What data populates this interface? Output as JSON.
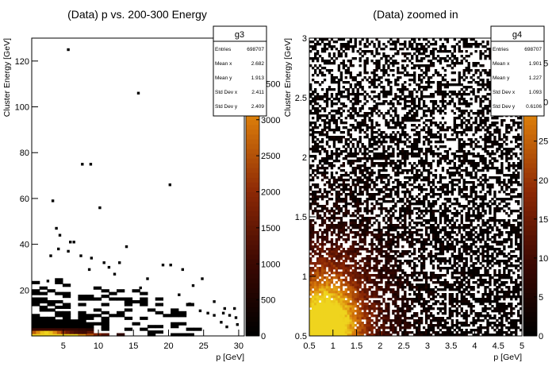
{
  "chart_data": [
    {
      "type": "heatmap",
      "title": "(Data) p vs. 200-300 Energy",
      "xlabel": "p [GeV]",
      "ylabel": "Cluster Energy [GeV]",
      "xlim": [
        0.5,
        30.8
      ],
      "ylim": [
        0,
        130
      ],
      "x_ticks": [
        "5",
        "10",
        "15",
        "20",
        "25",
        "30"
      ],
      "y_ticks": [
        "20",
        "40",
        "60",
        "80",
        "100",
        "120"
      ],
      "colorbar_ticks": [
        "0",
        "500",
        "1000",
        "1500",
        "2000",
        "2500",
        "3000",
        "3500"
      ],
      "colorbar_range": [
        0,
        4000
      ],
      "stats": {
        "name": "g3",
        "rows": [
          {
            "label": "Entries",
            "value": "698707"
          },
          {
            "label": "Mean x",
            "value": "2.682"
          },
          {
            "label": "Mean y",
            "value": "1.913"
          },
          {
            "label": "Std Dev x",
            "value": "2.411"
          },
          {
            "label": "Std Dev y",
            "value": "2.409"
          }
        ]
      },
      "outlier_points": [
        [
          5.7,
          125
        ],
        [
          15.7,
          106
        ],
        [
          7.7,
          75
        ],
        [
          8.9,
          75
        ],
        [
          20.2,
          66
        ],
        [
          3.5,
          59
        ],
        [
          10.2,
          56
        ],
        [
          4,
          47
        ],
        [
          4.5,
          44
        ],
        [
          6,
          41
        ],
        [
          6.5,
          41
        ],
        [
          14,
          39
        ],
        [
          4.3,
          38
        ],
        [
          5.7,
          37
        ],
        [
          3.2,
          35
        ],
        [
          7.5,
          35
        ],
        [
          9,
          34
        ],
        [
          10.8,
          32
        ],
        [
          13,
          32
        ],
        [
          19.2,
          31
        ],
        [
          20.3,
          31
        ],
        [
          11.5,
          30
        ],
        [
          22,
          29
        ],
        [
          8.7,
          29
        ],
        [
          12.3,
          27
        ],
        [
          24.8,
          25
        ],
        [
          2.8,
          24
        ],
        [
          17,
          25
        ],
        [
          23.5,
          22
        ],
        [
          16,
          21
        ],
        [
          21.5,
          18
        ],
        [
          26.5,
          15
        ],
        [
          23,
          14
        ],
        [
          28,
          12
        ],
        [
          24.5,
          11
        ],
        [
          25.6,
          10
        ],
        [
          26.5,
          9
        ],
        [
          27.8,
          10
        ],
        [
          28.7,
          9
        ],
        [
          29.6,
          8
        ],
        [
          29.4,
          12
        ],
        [
          27.5,
          6
        ],
        [
          29.8,
          5
        ],
        [
          28.3,
          4
        ]
      ],
      "dense_region": "x 0.5-24, y 0-25, peak near p 2-5 GeV, E < 3 GeV"
    },
    {
      "type": "heatmap",
      "title": "(Data) zoomed in",
      "xlabel": "p [GeV]",
      "ylabel": "Cluster Energy [GeV]",
      "xlim": [
        0.5,
        5
      ],
      "ylim": [
        0.5,
        3
      ],
      "x_ticks": [
        "0.5",
        "1",
        "1.5",
        "2",
        "2.5",
        "3",
        "3.5",
        "4",
        "4.5",
        "5"
      ],
      "y_ticks": [
        "0.5",
        "1",
        "1.5",
        "2",
        "2.5",
        "3"
      ],
      "colorbar_ticks": [
        "0",
        "5",
        "10",
        "15",
        "20",
        "25",
        "30",
        "35"
      ],
      "colorbar_range": [
        0,
        37
      ],
      "stats": {
        "name": "g4",
        "rows": [
          {
            "label": "Entries",
            "value": "698707"
          },
          {
            "label": "Mean x",
            "value": "1.901"
          },
          {
            "label": "Mean y",
            "value": "1.227"
          },
          {
            "label": "Std Dev x",
            "value": "1.093"
          },
          {
            "label": "Std Dev y",
            "value": "0.6106"
          }
        ]
      },
      "peak": {
        "x": 0.8,
        "y": 0.6,
        "value": 37
      }
    }
  ]
}
